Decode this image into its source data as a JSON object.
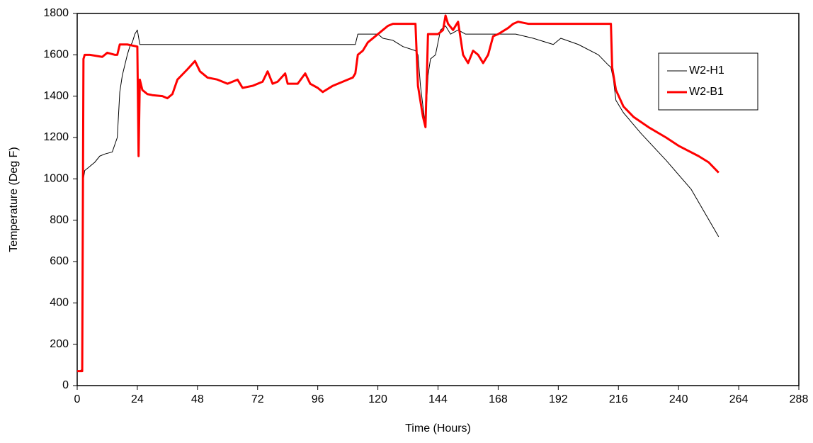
{
  "chart_data": {
    "type": "line",
    "x_label": "Time (Hours)",
    "y_label": "Temperature (Deg F)",
    "xlim": [
      0,
      288
    ],
    "xticks": [
      0,
      24,
      48,
      72,
      96,
      120,
      144,
      168,
      192,
      216,
      240,
      264,
      288
    ],
    "ylim": [
      0,
      1800
    ],
    "yticks": [
      0,
      200,
      400,
      600,
      800,
      1000,
      1200,
      1400,
      1600,
      1800
    ],
    "grid": false,
    "legend": "upper right",
    "series": [
      {
        "name": "W2-H1",
        "color": "#000000",
        "line_width": 1,
        "x": [
          0,
          1,
          2,
          2.5,
          3,
          5,
          7,
          9,
          11,
          14,
          16,
          17,
          18,
          19,
          20,
          21,
          22,
          23,
          24,
          25,
          30,
          60,
          90,
          111,
          112,
          120,
          122,
          126,
          130,
          135,
          136,
          137,
          139,
          140,
          141,
          143,
          145,
          147,
          149,
          152,
          155,
          165,
          175,
          182,
          190,
          193,
          200,
          208,
          212,
          213,
          214,
          215,
          218,
          225,
          235,
          245,
          256
        ],
        "values": [
          70,
          70,
          80,
          1000,
          1040,
          1060,
          1080,
          1110,
          1120,
          1130,
          1200,
          1420,
          1500,
          1550,
          1600,
          1640,
          1660,
          1700,
          1720,
          1650,
          1650,
          1650,
          1650,
          1650,
          1700,
          1700,
          1680,
          1670,
          1640,
          1620,
          1600,
          1450,
          1250,
          1500,
          1580,
          1600,
          1720,
          1740,
          1700,
          1720,
          1700,
          1700,
          1700,
          1680,
          1650,
          1680,
          1650,
          1600,
          1550,
          1540,
          1480,
          1380,
          1320,
          1220,
          1090,
          950,
          720
        ]
      },
      {
        "name": "W2-B1",
        "color": "#ff0000",
        "line_width": 3,
        "x": [
          0,
          2,
          2.5,
          3,
          5,
          10,
          12,
          15,
          16,
          17,
          20,
          24,
          24.5,
          25,
          26,
          28,
          30,
          34,
          36,
          38,
          40,
          44,
          47,
          49,
          52,
          56,
          60,
          64,
          66,
          70,
          74,
          76,
          78,
          80,
          83,
          84,
          88,
          91,
          93,
          96,
          98,
          102,
          106,
          110,
          111,
          112,
          114,
          116,
          120,
          122,
          124,
          126,
          128,
          135,
          136,
          138,
          139,
          140,
          144,
          146,
          147,
          148,
          150,
          152,
          154,
          156,
          158,
          160,
          162,
          164,
          166,
          168,
          172,
          174,
          176,
          180,
          200,
          212,
          213,
          213.5,
          215,
          218,
          222,
          228,
          235,
          240,
          248,
          252,
          256
        ],
        "values": [
          70,
          70,
          1580,
          1600,
          1600,
          1590,
          1610,
          1600,
          1600,
          1650,
          1650,
          1640,
          1110,
          1480,
          1430,
          1410,
          1405,
          1400,
          1390,
          1410,
          1480,
          1530,
          1570,
          1520,
          1490,
          1480,
          1460,
          1480,
          1440,
          1450,
          1470,
          1520,
          1460,
          1470,
          1510,
          1460,
          1460,
          1510,
          1460,
          1440,
          1420,
          1450,
          1470,
          1490,
          1510,
          1600,
          1620,
          1660,
          1700,
          1720,
          1740,
          1750,
          1750,
          1750,
          1450,
          1300,
          1250,
          1700,
          1700,
          1720,
          1790,
          1750,
          1720,
          1760,
          1600,
          1560,
          1620,
          1600,
          1560,
          1600,
          1690,
          1700,
          1730,
          1750,
          1760,
          1750,
          1750,
          1750,
          1750,
          1540,
          1430,
          1350,
          1300,
          1250,
          1200,
          1160,
          1110,
          1080,
          1030
        ]
      }
    ]
  }
}
